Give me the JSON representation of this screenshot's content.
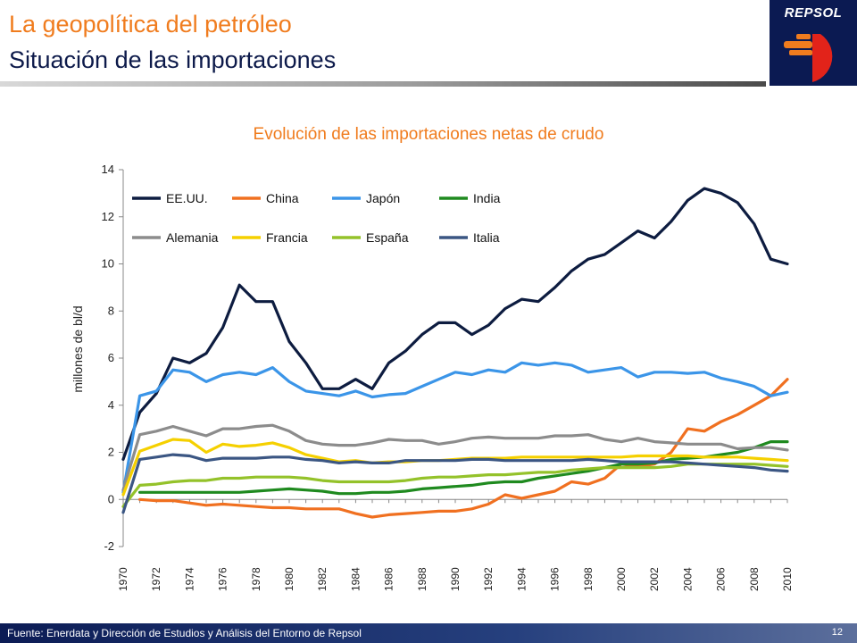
{
  "header": {
    "title": "La geopolítica del petróleo",
    "subtitle": "Situación de las importaciones",
    "logo_text": "REPSOL"
  },
  "footer": {
    "source": "Fuente: Enerdata y Dirección de Estudios y Análisis del Entorno de Repsol",
    "page_number": "12"
  },
  "colors": {
    "title_orange": "#f07c1e",
    "subtitle_navy": "#0d1a4a",
    "logo_navy": "#0b1a52",
    "logo_orange": "#f07c1e",
    "logo_red": "#e2231a"
  },
  "chart_data": {
    "type": "line",
    "title": "Evolución de las importaciones netas de crudo",
    "xlabel": "",
    "ylabel": "millones de bl/d",
    "ylim": [
      -2,
      14
    ],
    "yticks": [
      -2,
      0,
      2,
      4,
      6,
      8,
      10,
      12,
      14
    ],
    "xticks": [
      1970,
      1972,
      1974,
      1976,
      1978,
      1980,
      1982,
      1984,
      1986,
      1988,
      1990,
      1992,
      1994,
      1996,
      1998,
      2000,
      2002,
      2004,
      2006,
      2008,
      2010
    ],
    "grid": false,
    "legend": "top-left, inside plot, 4 columns",
    "x": [
      1970,
      1971,
      1972,
      1973,
      1974,
      1975,
      1976,
      1977,
      1978,
      1979,
      1980,
      1981,
      1982,
      1983,
      1984,
      1985,
      1986,
      1987,
      1988,
      1989,
      1990,
      1991,
      1992,
      1993,
      1994,
      1995,
      1996,
      1997,
      1998,
      1999,
      2000,
      2001,
      2002,
      2003,
      2004,
      2005,
      2006,
      2007,
      2008,
      2009,
      2010
    ],
    "series": [
      {
        "name": "EE.UU.",
        "color": "#0d1c40",
        "values": [
          1.7,
          3.7,
          4.5,
          6.0,
          5.8,
          6.2,
          7.3,
          9.1,
          8.4,
          8.4,
          6.7,
          5.8,
          4.7,
          4.7,
          5.1,
          4.7,
          5.8,
          6.3,
          7.0,
          7.5,
          7.5,
          7.0,
          7.4,
          8.1,
          8.5,
          8.4,
          9.0,
          9.7,
          10.2,
          10.4,
          10.9,
          11.4,
          11.1,
          11.8,
          12.7,
          13.2,
          13.0,
          12.6,
          11.7,
          10.2,
          10.0
        ]
      },
      {
        "name": "China",
        "color": "#f07020",
        "values": [
          null,
          0.0,
          -0.05,
          -0.05,
          -0.15,
          -0.25,
          -0.2,
          -0.25,
          -0.3,
          -0.35,
          -0.35,
          -0.4,
          -0.4,
          -0.4,
          -0.6,
          -0.75,
          -0.65,
          -0.6,
          -0.55,
          -0.5,
          -0.5,
          -0.4,
          -0.2,
          0.2,
          0.05,
          0.2,
          0.35,
          0.75,
          0.65,
          0.9,
          1.5,
          1.4,
          1.5,
          2.0,
          3.0,
          2.9,
          3.3,
          3.6,
          4.0,
          4.4,
          5.1
        ]
      },
      {
        "name": "Japón",
        "color": "#3b95e8",
        "values": [
          0.3,
          4.4,
          4.6,
          5.5,
          5.4,
          5.0,
          5.3,
          5.4,
          5.3,
          5.6,
          5.0,
          4.6,
          4.5,
          4.4,
          4.6,
          4.35,
          4.45,
          4.5,
          4.8,
          5.1,
          5.4,
          5.3,
          5.5,
          5.4,
          5.8,
          5.7,
          5.8,
          5.7,
          5.4,
          5.5,
          5.6,
          5.2,
          5.4,
          5.4,
          5.35,
          5.4,
          5.15,
          5.0,
          4.8,
          4.4,
          4.55
        ]
      },
      {
        "name": "India",
        "color": "#1f8a1f",
        "values": [
          null,
          0.3,
          0.3,
          0.3,
          0.3,
          0.3,
          0.3,
          0.3,
          0.35,
          0.4,
          0.45,
          0.4,
          0.35,
          0.25,
          0.25,
          0.3,
          0.3,
          0.35,
          0.45,
          0.5,
          0.55,
          0.6,
          0.7,
          0.75,
          0.75,
          0.9,
          1.0,
          1.1,
          1.2,
          1.35,
          1.5,
          1.5,
          1.55,
          1.7,
          1.75,
          1.8,
          1.9,
          2.0,
          2.2,
          2.45,
          2.45
        ]
      },
      {
        "name": "Alemania",
        "color": "#8c8c8c",
        "values": [
          0.4,
          2.75,
          2.9,
          3.1,
          2.9,
          2.7,
          3.0,
          3.0,
          3.1,
          3.15,
          2.9,
          2.5,
          2.35,
          2.3,
          2.3,
          2.4,
          2.55,
          2.5,
          2.5,
          2.35,
          2.45,
          2.6,
          2.65,
          2.6,
          2.6,
          2.6,
          2.7,
          2.7,
          2.75,
          2.55,
          2.45,
          2.6,
          2.45,
          2.4,
          2.35,
          2.35,
          2.35,
          2.15,
          2.2,
          2.2,
          2.1
        ]
      },
      {
        "name": "Francia",
        "color": "#f5d000",
        "values": [
          0.2,
          2.05,
          2.3,
          2.55,
          2.5,
          2.0,
          2.35,
          2.25,
          2.3,
          2.4,
          2.2,
          1.9,
          1.75,
          1.6,
          1.65,
          1.55,
          1.6,
          1.6,
          1.65,
          1.65,
          1.7,
          1.75,
          1.75,
          1.75,
          1.8,
          1.8,
          1.8,
          1.8,
          1.8,
          1.8,
          1.8,
          1.85,
          1.85,
          1.85,
          1.85,
          1.8,
          1.8,
          1.8,
          1.75,
          1.7,
          1.65
        ]
      },
      {
        "name": "España",
        "color": "#94c22a",
        "values": [
          -0.3,
          0.6,
          0.65,
          0.75,
          0.8,
          0.8,
          0.9,
          0.9,
          0.95,
          0.95,
          0.95,
          0.9,
          0.8,
          0.75,
          0.75,
          0.75,
          0.75,
          0.8,
          0.9,
          0.95,
          0.95,
          1.0,
          1.05,
          1.05,
          1.1,
          1.15,
          1.15,
          1.25,
          1.3,
          1.35,
          1.35,
          1.35,
          1.35,
          1.4,
          1.5,
          1.5,
          1.5,
          1.5,
          1.5,
          1.45,
          1.4
        ]
      },
      {
        "name": "Italia",
        "color": "#3b5683",
        "values": [
          -0.55,
          1.7,
          1.8,
          1.9,
          1.85,
          1.65,
          1.75,
          1.75,
          1.75,
          1.8,
          1.8,
          1.7,
          1.65,
          1.55,
          1.6,
          1.55,
          1.55,
          1.65,
          1.65,
          1.65,
          1.65,
          1.7,
          1.7,
          1.65,
          1.65,
          1.65,
          1.65,
          1.65,
          1.7,
          1.65,
          1.6,
          1.6,
          1.6,
          1.6,
          1.55,
          1.5,
          1.45,
          1.4,
          1.35,
          1.25,
          1.2
        ]
      }
    ]
  }
}
